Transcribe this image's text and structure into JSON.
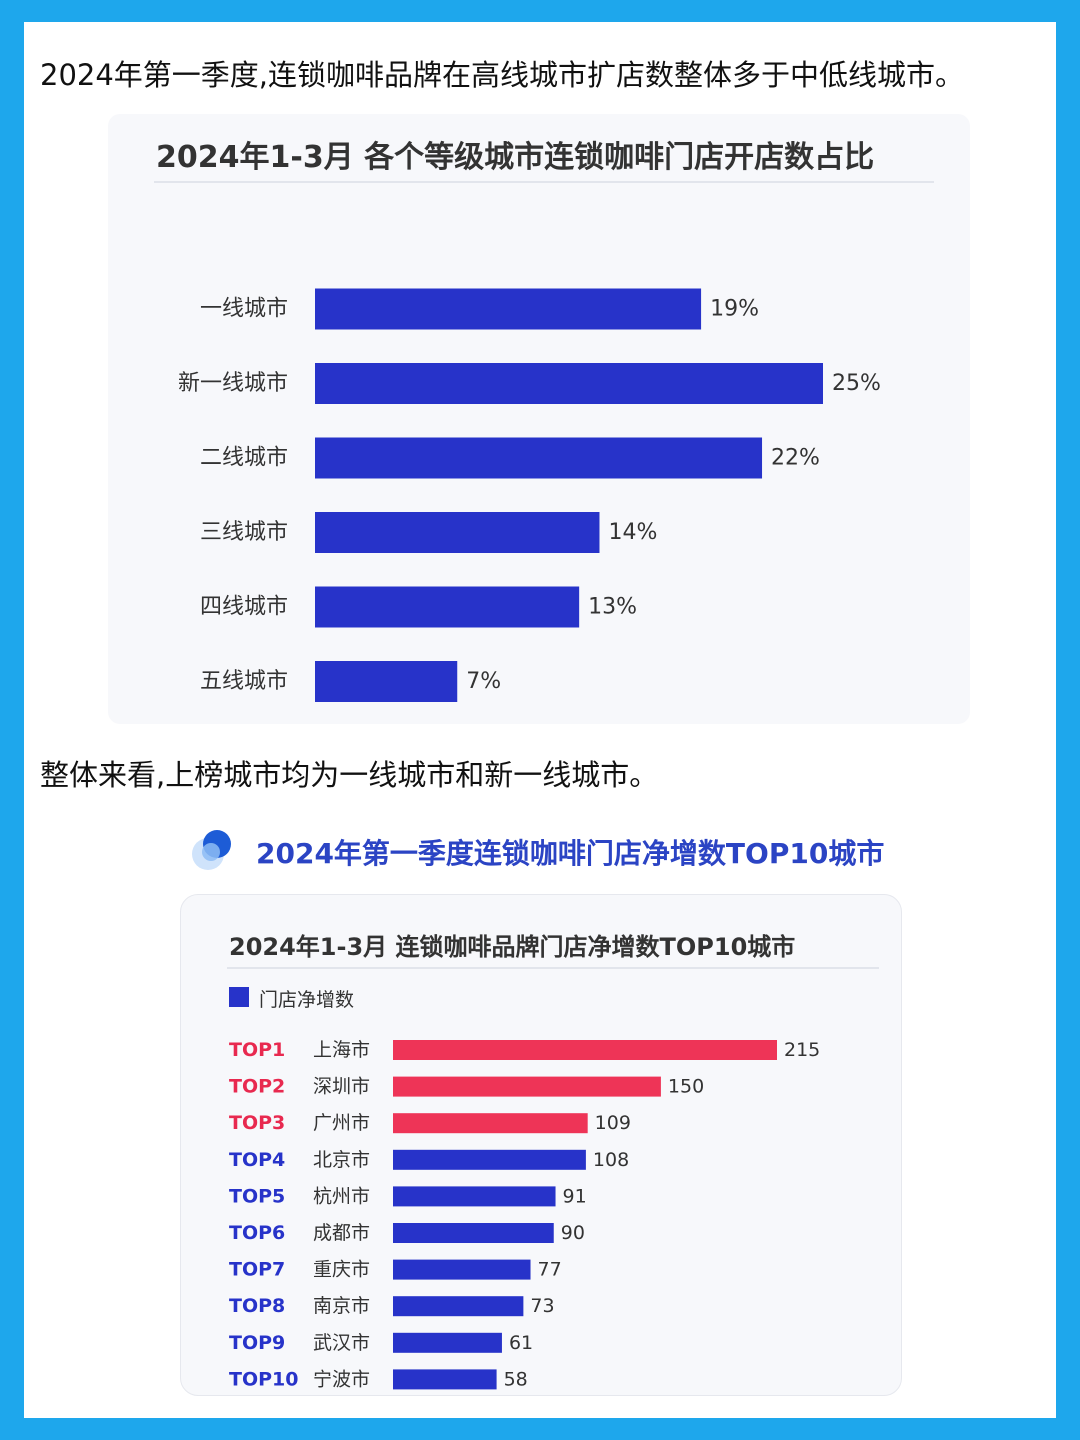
{
  "paragraphs": {
    "intro": "2024年第一季度,连锁咖啡品牌在高线城市扩店数整体多于中低线城市。",
    "summary": "整体来看,上榜城市均为一线城市和新一线城市。"
  },
  "section2": {
    "title": "2024年第一季度连锁咖啡门店净增数TOP10城市"
  },
  "colors": {
    "bar_blue": "#2733c9",
    "bar_red": "#ee3457",
    "rank_red": "#e8294f",
    "rank_blue": "#2733c9"
  },
  "chart_data": [
    {
      "type": "bar",
      "orientation": "horizontal",
      "title": "2024年1-3月 各个等级城市连锁咖啡门店开店数占比",
      "categories": [
        "一线城市",
        "新一线城市",
        "二线城市",
        "三线城市",
        "四线城市",
        "五线城市"
      ],
      "values": [
        19,
        25,
        22,
        14,
        13,
        7
      ],
      "value_labels": [
        "19%",
        "25%",
        "22%",
        "14%",
        "13%",
        "7%"
      ],
      "unit": "%",
      "xlim": [
        0,
        25
      ],
      "grid": false
    },
    {
      "type": "bar",
      "orientation": "horizontal",
      "title": "2024年1-3月 连锁咖啡品牌门店净增数TOP10城市",
      "legend": {
        "position": "top-left",
        "entries": [
          "门店净增数"
        ]
      },
      "series": [
        {
          "name": "门店净增数",
          "values": [
            215,
            150,
            109,
            108,
            91,
            90,
            77,
            73,
            61,
            58
          ]
        }
      ],
      "ranks": [
        "TOP1",
        "TOP2",
        "TOP3",
        "TOP4",
        "TOP5",
        "TOP6",
        "TOP7",
        "TOP8",
        "TOP9",
        "TOP10"
      ],
      "categories": [
        "上海市",
        "深圳市",
        "广州市",
        "北京市",
        "杭州市",
        "成都市",
        "重庆市",
        "南京市",
        "武汉市",
        "宁波市"
      ],
      "highlight_top": 3,
      "xlim": [
        0,
        215
      ],
      "grid": false
    }
  ]
}
